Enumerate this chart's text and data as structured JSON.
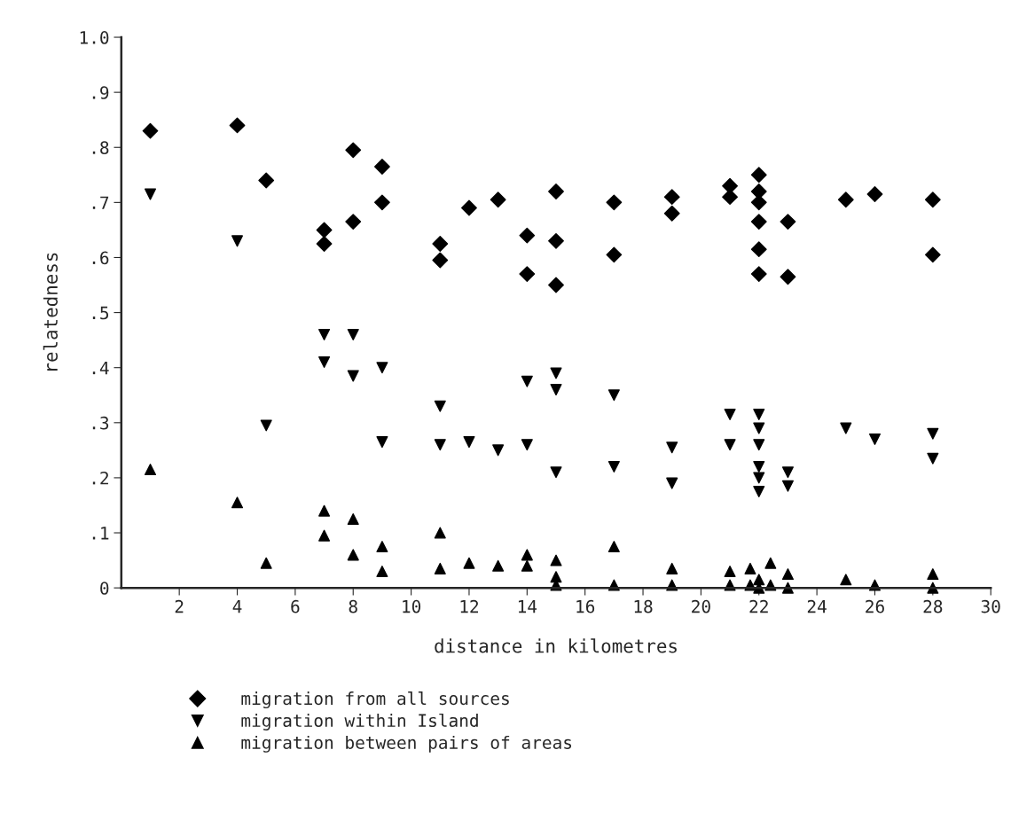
{
  "chart_data": {
    "type": "scatter",
    "xlabel": "distance in kilometres",
    "ylabel": "relatedness",
    "xlim": [
      0,
      30
    ],
    "xticks": [
      2,
      4,
      6,
      8,
      10,
      12,
      14,
      16,
      18,
      20,
      22,
      24,
      26,
      28,
      30
    ],
    "ylim": [
      0,
      1.0
    ],
    "yticks": [
      {
        "value": 0,
        "label": "0"
      },
      {
        "value": 0.1,
        "label": ".1"
      },
      {
        "value": 0.2,
        "label": ".2"
      },
      {
        "value": 0.3,
        "label": ".3"
      },
      {
        "value": 0.4,
        "label": ".4"
      },
      {
        "value": 0.5,
        "label": ".5"
      },
      {
        "value": 0.6,
        "label": ".6"
      },
      {
        "value": 0.7,
        "label": ".7"
      },
      {
        "value": 0.8,
        "label": ".8"
      },
      {
        "value": 0.9,
        "label": ".9"
      },
      {
        "value": 1.0,
        "label": "1.0"
      }
    ],
    "grid": false,
    "legend": "bottom",
    "series": [
      {
        "name": "migration from all sources",
        "color": "#000000",
        "marker": "diamond",
        "x": [
          1,
          4,
          5,
          7,
          7,
          8,
          8,
          9,
          9,
          11,
          11,
          12,
          13,
          14,
          14,
          15,
          15,
          15,
          17,
          17,
          19,
          19,
          21,
          21,
          22,
          22,
          22,
          22,
          22,
          22,
          23,
          23,
          25,
          26,
          28,
          28
        ],
        "values": [
          0.83,
          0.84,
          0.74,
          0.65,
          0.625,
          0.795,
          0.665,
          0.765,
          0.7,
          0.625,
          0.595,
          0.69,
          0.705,
          0.64,
          0.57,
          0.72,
          0.63,
          0.55,
          0.7,
          0.605,
          0.71,
          0.68,
          0.73,
          0.71,
          0.75,
          0.72,
          0.7,
          0.665,
          0.615,
          0.57,
          0.665,
          0.565,
          0.705,
          0.715,
          0.705,
          0.605
        ]
      },
      {
        "name": "migration within Island",
        "color": "#000000",
        "marker": "triangle_down",
        "x": [
          1,
          4,
          5,
          7,
          7,
          8,
          8,
          9,
          9,
          11,
          11,
          12,
          13,
          14,
          14,
          15,
          15,
          15,
          17,
          17,
          19,
          19,
          21,
          21,
          22,
          22,
          22,
          22,
          22,
          22,
          23,
          23,
          25,
          26,
          28,
          28
        ],
        "values": [
          0.715,
          0.63,
          0.295,
          0.46,
          0.41,
          0.46,
          0.385,
          0.4,
          0.265,
          0.33,
          0.26,
          0.265,
          0.25,
          0.375,
          0.26,
          0.39,
          0.36,
          0.21,
          0.35,
          0.22,
          0.255,
          0.19,
          0.315,
          0.26,
          0.315,
          0.29,
          0.26,
          0.22,
          0.2,
          0.175,
          0.21,
          0.185,
          0.29,
          0.27,
          0.28,
          0.235
        ]
      },
      {
        "name": "migration between pairs of areas",
        "color": "#000000",
        "marker": "triangle",
        "x": [
          1,
          4,
          5,
          7,
          7,
          8,
          8,
          9,
          9,
          11,
          11,
          12,
          13,
          14,
          14,
          15,
          15,
          15,
          17,
          17,
          19,
          19,
          21,
          21,
          21.7,
          21.7,
          22,
          22,
          22.4,
          22.4,
          23,
          23,
          25,
          26,
          28,
          28
        ],
        "values": [
          0.215,
          0.155,
          0.045,
          0.14,
          0.095,
          0.125,
          0.06,
          0.075,
          0.03,
          0.1,
          0.035,
          0.045,
          0.04,
          0.06,
          0.04,
          0.05,
          0.02,
          0.005,
          0.075,
          0.005,
          0.035,
          0.005,
          0.03,
          0.005,
          0.035,
          0.005,
          0.015,
          0.0,
          0.045,
          0.005,
          0.025,
          0.0,
          0.015,
          0.005,
          0.025,
          0.0
        ]
      }
    ]
  }
}
